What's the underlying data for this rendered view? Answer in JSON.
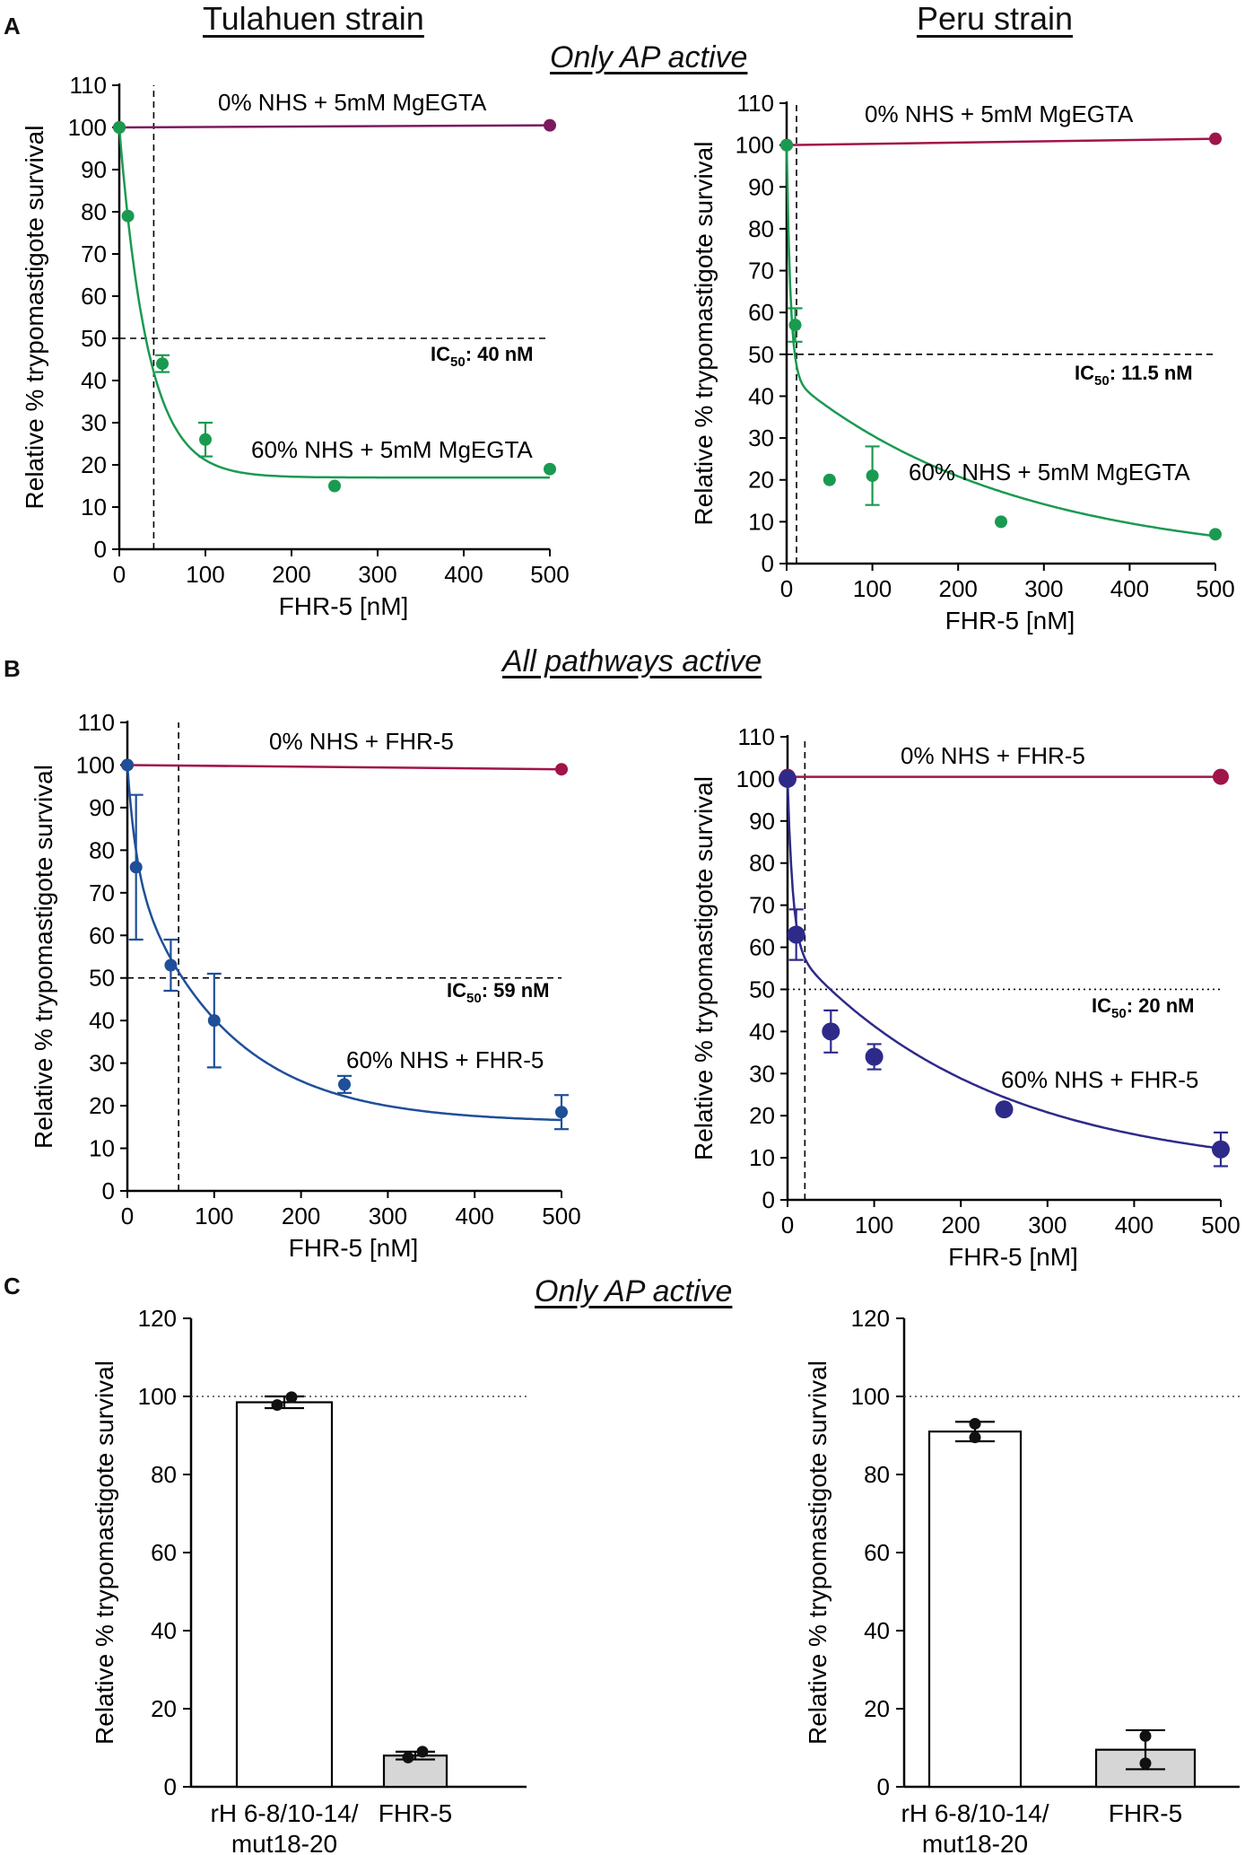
{
  "headers": {
    "left": "Tulahuen strain",
    "right": "Peru strain"
  },
  "sections": {
    "a": "Only AP active",
    "b": "All pathways active",
    "c": "Only AP active"
  },
  "panel_labels": {
    "a": "A",
    "b": "B",
    "c": "C"
  },
  "chart_data": [
    {
      "id": "a-tulahuen",
      "type": "scatter",
      "xlabel": "FHR-5 [nM]",
      "ylabel": "Relative % trypomastigote survival",
      "xlim": [
        0,
        500
      ],
      "ylim": [
        0,
        110
      ],
      "xticks": [
        0,
        100,
        200,
        300,
        400,
        500
      ],
      "yticks": [
        0,
        10,
        20,
        30,
        40,
        50,
        60,
        70,
        80,
        90,
        100,
        110
      ],
      "ic50": {
        "text": "IC",
        "sub": "50",
        "rest": ": 40 nM",
        "x": 40,
        "y": 50
      },
      "series": [
        {
          "name": "0% NHS + 5mM MgEGTA",
          "color": "#7b1a5e",
          "fit": "line",
          "x": [
            0,
            500
          ],
          "y": [
            100,
            100.5
          ],
          "err": [
            0,
            0
          ]
        },
        {
          "name": "60% NHS + 5mM MgEGTA",
          "color": "#1a9a50",
          "fit": "decay",
          "top": 100,
          "bottom": 17,
          "k": 0.03,
          "x": [
            0,
            10,
            50,
            100,
            250,
            500
          ],
          "y": [
            100,
            79,
            44,
            26,
            15,
            19
          ],
          "err": [
            0,
            0,
            2,
            4,
            0,
            0
          ]
        }
      ]
    },
    {
      "id": "a-peru",
      "type": "scatter",
      "xlabel": "FHR-5 [nM]",
      "ylabel": "Relative % trypomastigote survival",
      "xlim": [
        0,
        500
      ],
      "ylim": [
        0,
        110
      ],
      "xticks": [
        0,
        100,
        200,
        300,
        400,
        500
      ],
      "yticks": [
        0,
        10,
        20,
        30,
        40,
        50,
        60,
        70,
        80,
        90,
        100,
        110
      ],
      "ic50": {
        "text": "IC",
        "sub": "50",
        "rest": ": 11.5 nM",
        "x": 11.5,
        "y": 50
      },
      "series": [
        {
          "name": "0% NHS + 5mM MgEGTA",
          "color": "#a0144a",
          "fit": "line",
          "x": [
            0,
            500
          ],
          "y": [
            100,
            101.5
          ],
          "err": [
            0,
            0
          ]
        },
        {
          "name": "60% NHS + 5mM MgEGTA",
          "color": "#1a9a50",
          "fit": "twophase",
          "x": [
            0,
            10,
            50,
            100,
            250,
            500
          ],
          "y": [
            100,
            57,
            20,
            21,
            10,
            7
          ],
          "err": [
            0,
            4,
            0,
            7,
            0,
            0
          ]
        }
      ]
    },
    {
      "id": "b-tulahuen",
      "type": "scatter",
      "xlabel": "FHR-5 [nM]",
      "ylabel": "Relative % trypomastigote survival",
      "xlim": [
        0,
        500
      ],
      "ylim": [
        0,
        110
      ],
      "xticks": [
        0,
        100,
        200,
        300,
        400,
        500
      ],
      "yticks": [
        0,
        10,
        20,
        30,
        40,
        50,
        60,
        70,
        80,
        90,
        100,
        110
      ],
      "ic50": {
        "text": "IC",
        "sub": "50",
        "rest": ": 59 nM",
        "x": 59,
        "y": 50
      },
      "series": [
        {
          "name": "0% NHS + FHR-5",
          "color": "#a0144a",
          "fit": "line",
          "x": [
            0,
            500
          ],
          "y": [
            100,
            99
          ],
          "err": [
            0,
            0
          ]
        },
        {
          "name": "60% NHS + FHR-5",
          "color": "#1f4f99",
          "fit": "decay2",
          "x": [
            0,
            10,
            50,
            100,
            250,
            500
          ],
          "y": [
            100,
            76,
            53,
            40,
            25,
            18.5
          ],
          "err": [
            0,
            17,
            6,
            11,
            2,
            4
          ]
        }
      ]
    },
    {
      "id": "b-peru",
      "type": "scatter",
      "xlabel": "FHR-5 [nM]",
      "ylabel": "Relative % trypomastigote survival",
      "xlim": [
        0,
        500
      ],
      "ylim": [
        0,
        110
      ],
      "xticks": [
        0,
        100,
        200,
        300,
        400,
        500
      ],
      "yticks": [
        0,
        10,
        20,
        30,
        40,
        50,
        60,
        70,
        80,
        90,
        100,
        110
      ],
      "ic50": {
        "text": "IC",
        "sub": "50",
        "rest": ": 20 nM",
        "x": 20,
        "y": 50
      },
      "series": [
        {
          "name": "0% NHS + FHR-5",
          "color": "#a0144a",
          "fit": "line",
          "x": [
            0,
            500
          ],
          "y": [
            100.5,
            100.5
          ],
          "err": [
            0,
            0
          ]
        },
        {
          "name": "60% NHS + FHR-5",
          "color": "#2e2a8a",
          "fit": "twophase2",
          "x": [
            0,
            10,
            50,
            100,
            250,
            500
          ],
          "y": [
            100,
            63,
            40,
            34,
            21.5,
            12
          ],
          "err": [
            0,
            6,
            5,
            3,
            0,
            4
          ]
        }
      ]
    },
    {
      "id": "c-tulahuen",
      "type": "bar",
      "ylabel": "Relative % trypomastigote survival",
      "ylim": [
        0,
        120
      ],
      "yticks": [
        0,
        20,
        40,
        60,
        80,
        100,
        120
      ],
      "refline": 100,
      "categories": [
        [
          "rH 6-8/10-14/",
          "mut18-20"
        ],
        [
          "FHR-5"
        ]
      ],
      "values": [
        98.5,
        8
      ],
      "err": [
        1.5,
        1
      ],
      "points": [
        [
          97.8,
          99.8
        ],
        [
          7.5,
          9
        ]
      ],
      "fills": [
        "#ffffff",
        "#d6d6d6"
      ]
    },
    {
      "id": "c-peru",
      "type": "bar",
      "ylabel": "Relative % trypomastigote survival",
      "ylim": [
        0,
        120
      ],
      "yticks": [
        0,
        20,
        40,
        60,
        80,
        100,
        120
      ],
      "refline": 100,
      "categories": [
        [
          "rH 6-8/10-14/",
          "mut18-20"
        ],
        [
          "FHR-5"
        ]
      ],
      "values": [
        91,
        9.5
      ],
      "err": [
        2.5,
        5
      ],
      "points": [
        [
          89.5,
          93
        ],
        [
          13,
          6
        ]
      ],
      "fills": [
        "#ffffff",
        "#d6d6d6"
      ]
    }
  ]
}
